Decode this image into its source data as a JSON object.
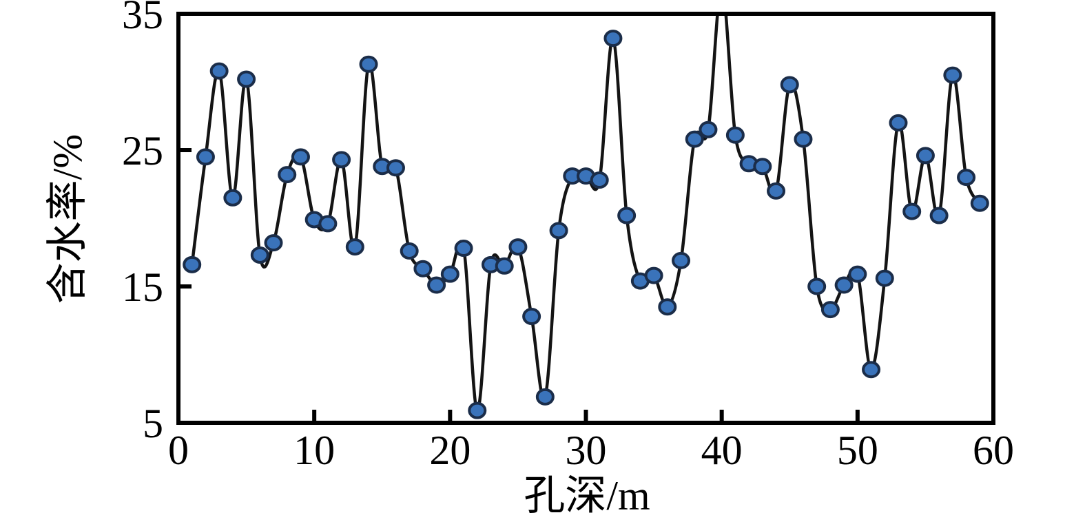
{
  "chart_data": {
    "type": "line",
    "title": "",
    "xlabel": "孔深/m",
    "ylabel": "含水率/%",
    "xlim": [
      0,
      60
    ],
    "ylim": [
      5,
      35
    ],
    "xticks": [
      0,
      10,
      20,
      30,
      40,
      50,
      60
    ],
    "yticks": [
      5,
      15,
      25,
      35
    ],
    "grid": false,
    "legend": "none",
    "marker": "circle",
    "smooth": true,
    "clip_to_axes": true,
    "series": [
      {
        "name": "含水率",
        "x": [
          1,
          2,
          3,
          4,
          5,
          6,
          7,
          8,
          9,
          10,
          11,
          12,
          13,
          14,
          15,
          16,
          17,
          18,
          19,
          20,
          21,
          22,
          23,
          24,
          25,
          26,
          27,
          28,
          29,
          30,
          31,
          32,
          33,
          34,
          35,
          36,
          37,
          38,
          39,
          40,
          41,
          42,
          43,
          44,
          45,
          46,
          47,
          48,
          49,
          50,
          51,
          52,
          53,
          54,
          55,
          56,
          57,
          58,
          59
        ],
        "values": [
          16.6,
          24.5,
          30.8,
          21.5,
          30.2,
          17.3,
          18.2,
          23.2,
          24.5,
          19.9,
          19.6,
          24.3,
          17.9,
          31.3,
          23.8,
          23.7,
          17.6,
          16.3,
          15.1,
          15.9,
          17.8,
          5.9,
          16.6,
          16.5,
          17.9,
          12.8,
          6.9,
          19.1,
          23.1,
          23.1,
          22.8,
          33.2,
          20.2,
          15.4,
          15.8,
          13.5,
          16.9,
          25.8,
          26.5,
          37.0,
          26.1,
          24.0,
          23.8,
          22.0,
          29.8,
          25.8,
          15.0,
          13.3,
          15.1,
          15.9,
          8.9,
          15.6,
          27.0,
          20.5,
          24.6,
          20.2,
          30.5,
          23.0,
          21.1
        ]
      }
    ],
    "colors": {
      "line": "#141414",
      "marker_fill": "#3a73ba",
      "marker_stroke": "#1b2d49",
      "axis": "#000000",
      "background": "#ffffff"
    }
  }
}
